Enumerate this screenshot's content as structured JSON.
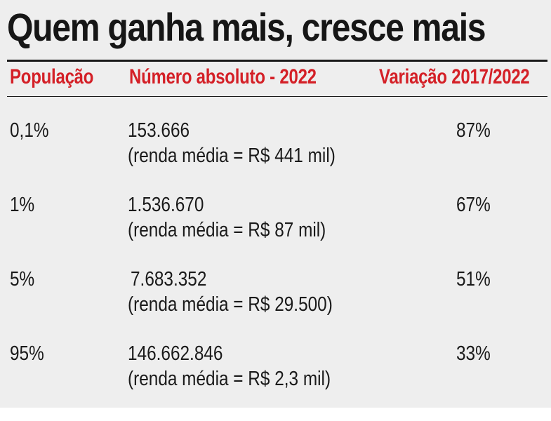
{
  "title": "Quem ganha mais, cresce mais",
  "colors": {
    "header_red": "#d42027",
    "background": "#eeeeee",
    "text": "#1a1a1a"
  },
  "header": {
    "populacao": "População",
    "numero_absoluto": "Número absoluto - 2022",
    "variacao": "Variação 2017/2022"
  },
  "rows": [
    {
      "populacao": "0,1%",
      "numero": "153.666",
      "renda": "(renda média = R$ 441 mil)",
      "variacao": "87%"
    },
    {
      "populacao": "1%",
      "numero": "1.536.670",
      "renda": "(renda média = R$ 87 mil)",
      "variacao": "67%"
    },
    {
      "populacao": "5%",
      "numero": "7.683.352",
      "renda": "(renda média = R$ 29.500)",
      "variacao": "51%"
    },
    {
      "populacao": "95%",
      "numero": "146.662.846",
      "renda": "(renda média = R$ 2,3 mil)",
      "variacao": "33%"
    }
  ]
}
